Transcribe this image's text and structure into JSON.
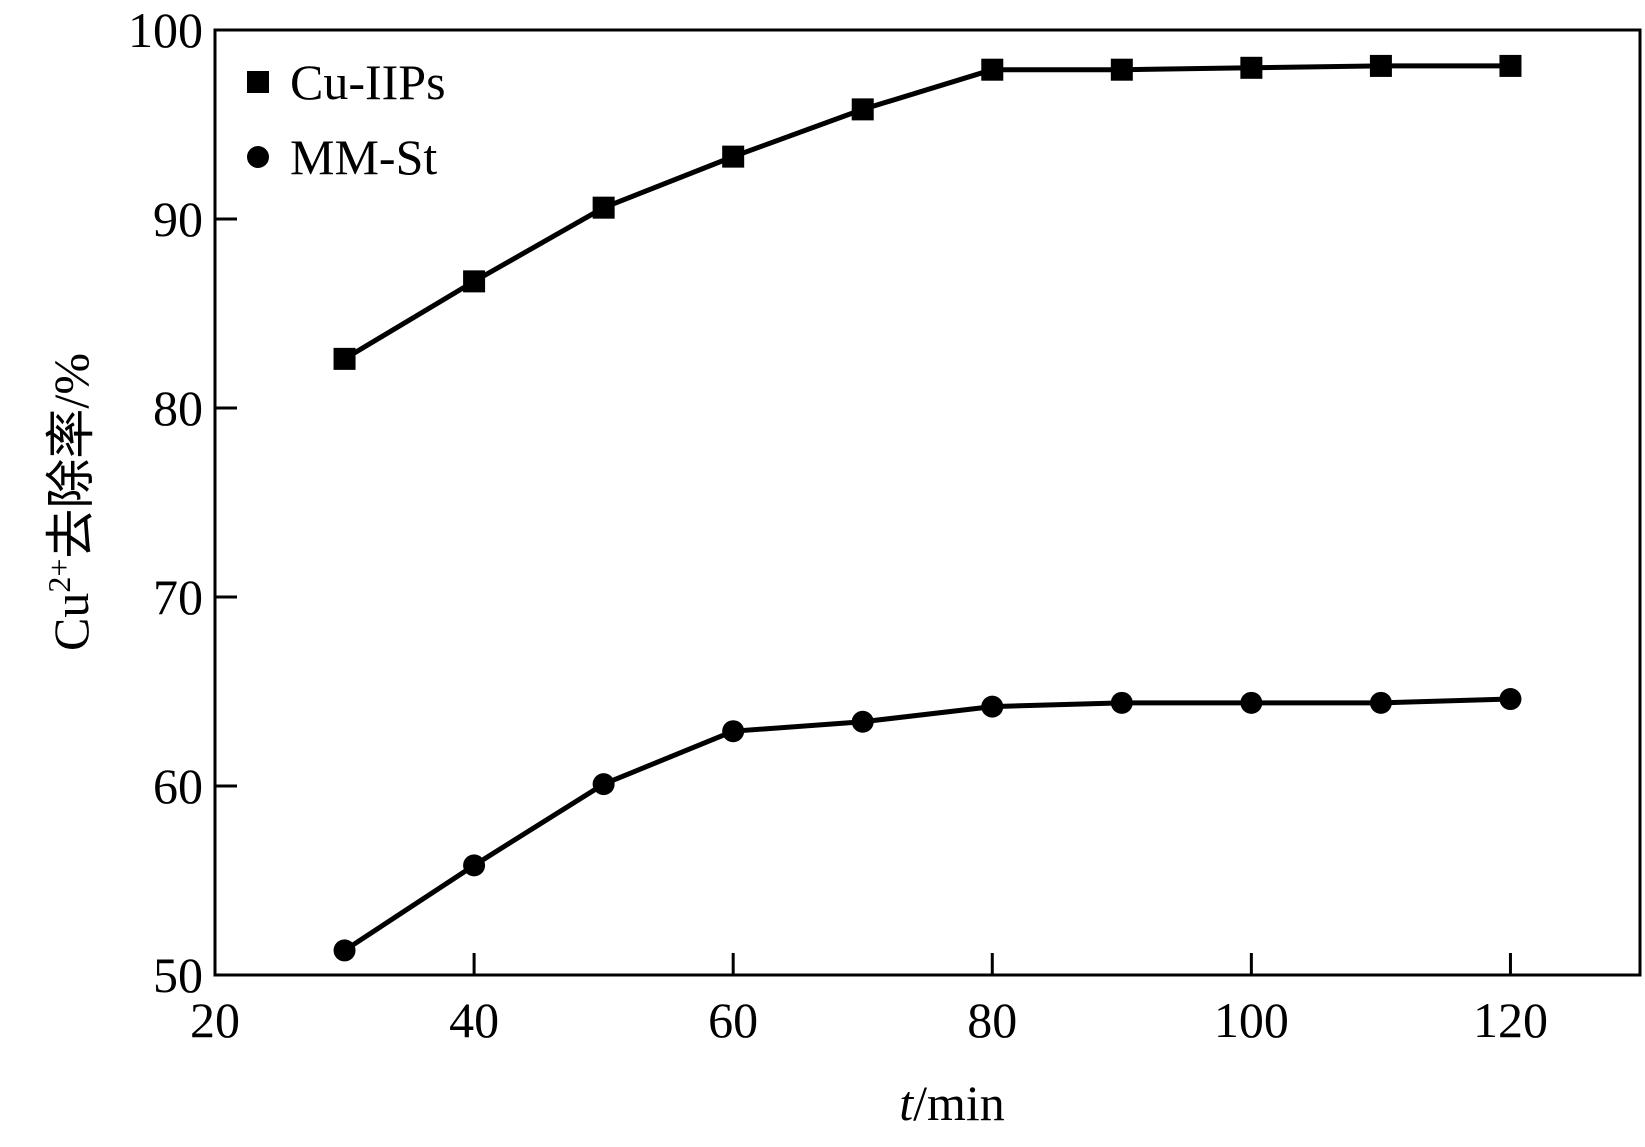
{
  "chart_data": {
    "type": "line",
    "title": "",
    "xlabel": {
      "italic": "t",
      "rest": "/min"
    },
    "ylabel": {
      "base": "Cu",
      "sup": "2+",
      "rest": "去除率/%"
    },
    "xlim": [
      20,
      130
    ],
    "ylim": [
      50,
      100
    ],
    "x_ticks": [
      20,
      40,
      60,
      80,
      100,
      120
    ],
    "y_ticks": [
      50,
      60,
      70,
      80,
      90,
      100
    ],
    "grid": false,
    "legend_position": "top-left",
    "x": [
      30,
      40,
      50,
      60,
      70,
      80,
      90,
      100,
      110,
      120
    ],
    "series": [
      {
        "name": "Cu-IIPs",
        "marker": "square",
        "color": "#000000",
        "values": [
          82.6,
          86.7,
          90.6,
          93.3,
          95.8,
          97.9,
          97.9,
          98.0,
          98.1,
          98.1
        ]
      },
      {
        "name": "MM-St",
        "marker": "circle",
        "color": "#000000",
        "values": [
          51.3,
          55.8,
          60.1,
          62.9,
          63.4,
          64.2,
          64.4,
          64.4,
          64.4,
          64.6
        ]
      }
    ]
  }
}
